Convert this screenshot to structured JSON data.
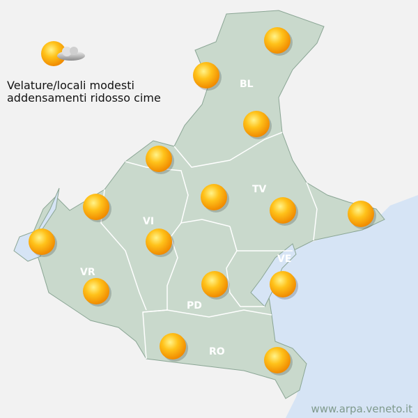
{
  "legend": {
    "icon": "sun-with-cloud-icon",
    "text": "Velature/locali modesti addensamenti ridosso cime"
  },
  "provinces": [
    {
      "code": "BL"
    },
    {
      "code": "TV"
    },
    {
      "code": "VI"
    },
    {
      "code": "VR"
    },
    {
      "code": "VE"
    },
    {
      "code": "PD"
    },
    {
      "code": "RO"
    }
  ],
  "forecast_icon": "sun-icon",
  "colors": {
    "land": "#c9d9cc",
    "sea": "#d6e4f5",
    "background": "#f2f2f2",
    "sun": "#ffb000",
    "border": "#ffffff"
  },
  "credit": "www.arpa.veneto.it"
}
